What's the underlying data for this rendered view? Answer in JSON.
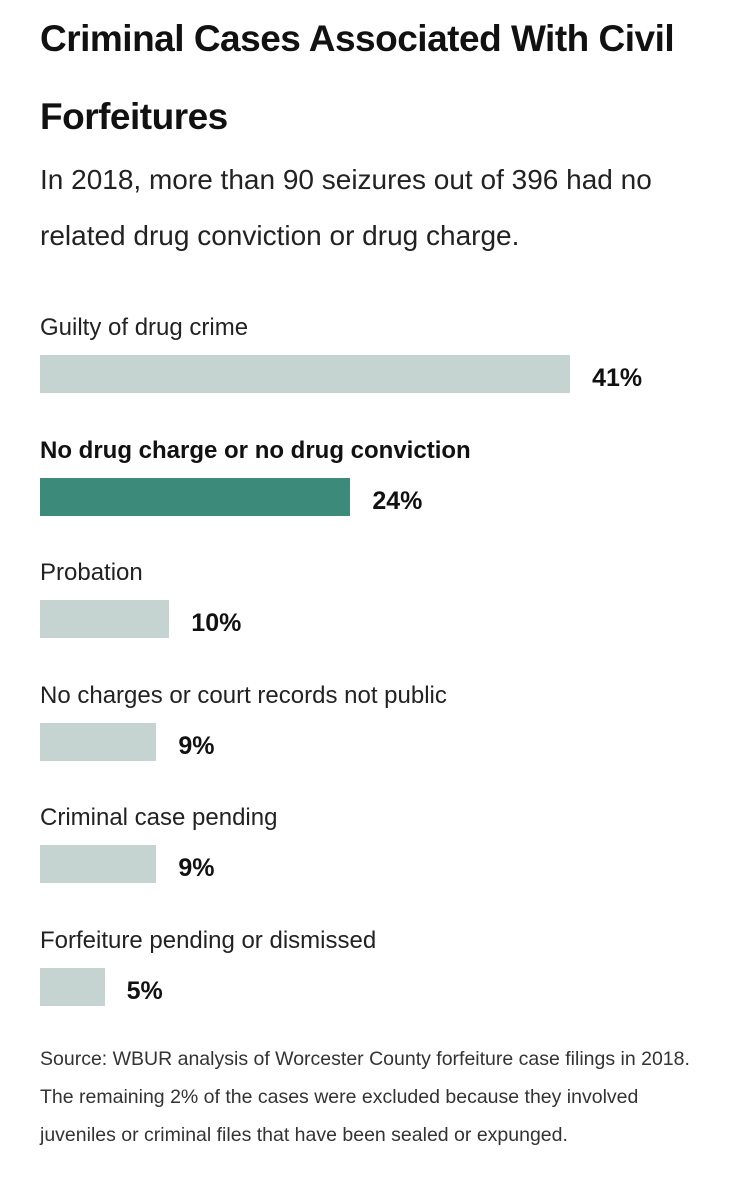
{
  "header": {
    "title": "Criminal Cases Associated With Civil Forfeitures",
    "subtitle": "In 2018, more than 90 seizures out of 396 had no related drug conviction or drug charge."
  },
  "chart_data": {
    "type": "bar",
    "orientation": "horizontal",
    "title": "Criminal Cases Associated With Civil Forfeitures",
    "subtitle": "In 2018, more than 90 seizures out of 396 had no related drug conviction or drug charge.",
    "categories": [
      "Guilty of drug crime",
      "No drug charge or no drug conviction",
      "Probation",
      "No charges or court records not public",
      "Criminal case pending",
      "Forfeiture pending or dismissed"
    ],
    "values": [
      41,
      24,
      10,
      9,
      9,
      5
    ],
    "value_labels": [
      "41%",
      "24%",
      "10%",
      "9%",
      "9%",
      "5%"
    ],
    "highlight_index": 1,
    "unit": "%",
    "xlim": [
      0,
      100
    ],
    "grid": false,
    "legend": "none"
  },
  "colors": {
    "bar_default": "#c5d4d1",
    "bar_highlight": "#3c8a79",
    "text": "#111111"
  },
  "footer": {
    "source": "Source: WBUR analysis of Worcester County forfeiture case filings in 2018. The remaining 2% of the cases were excluded because they involved juveniles or criminal files that have been sealed or expunged."
  }
}
